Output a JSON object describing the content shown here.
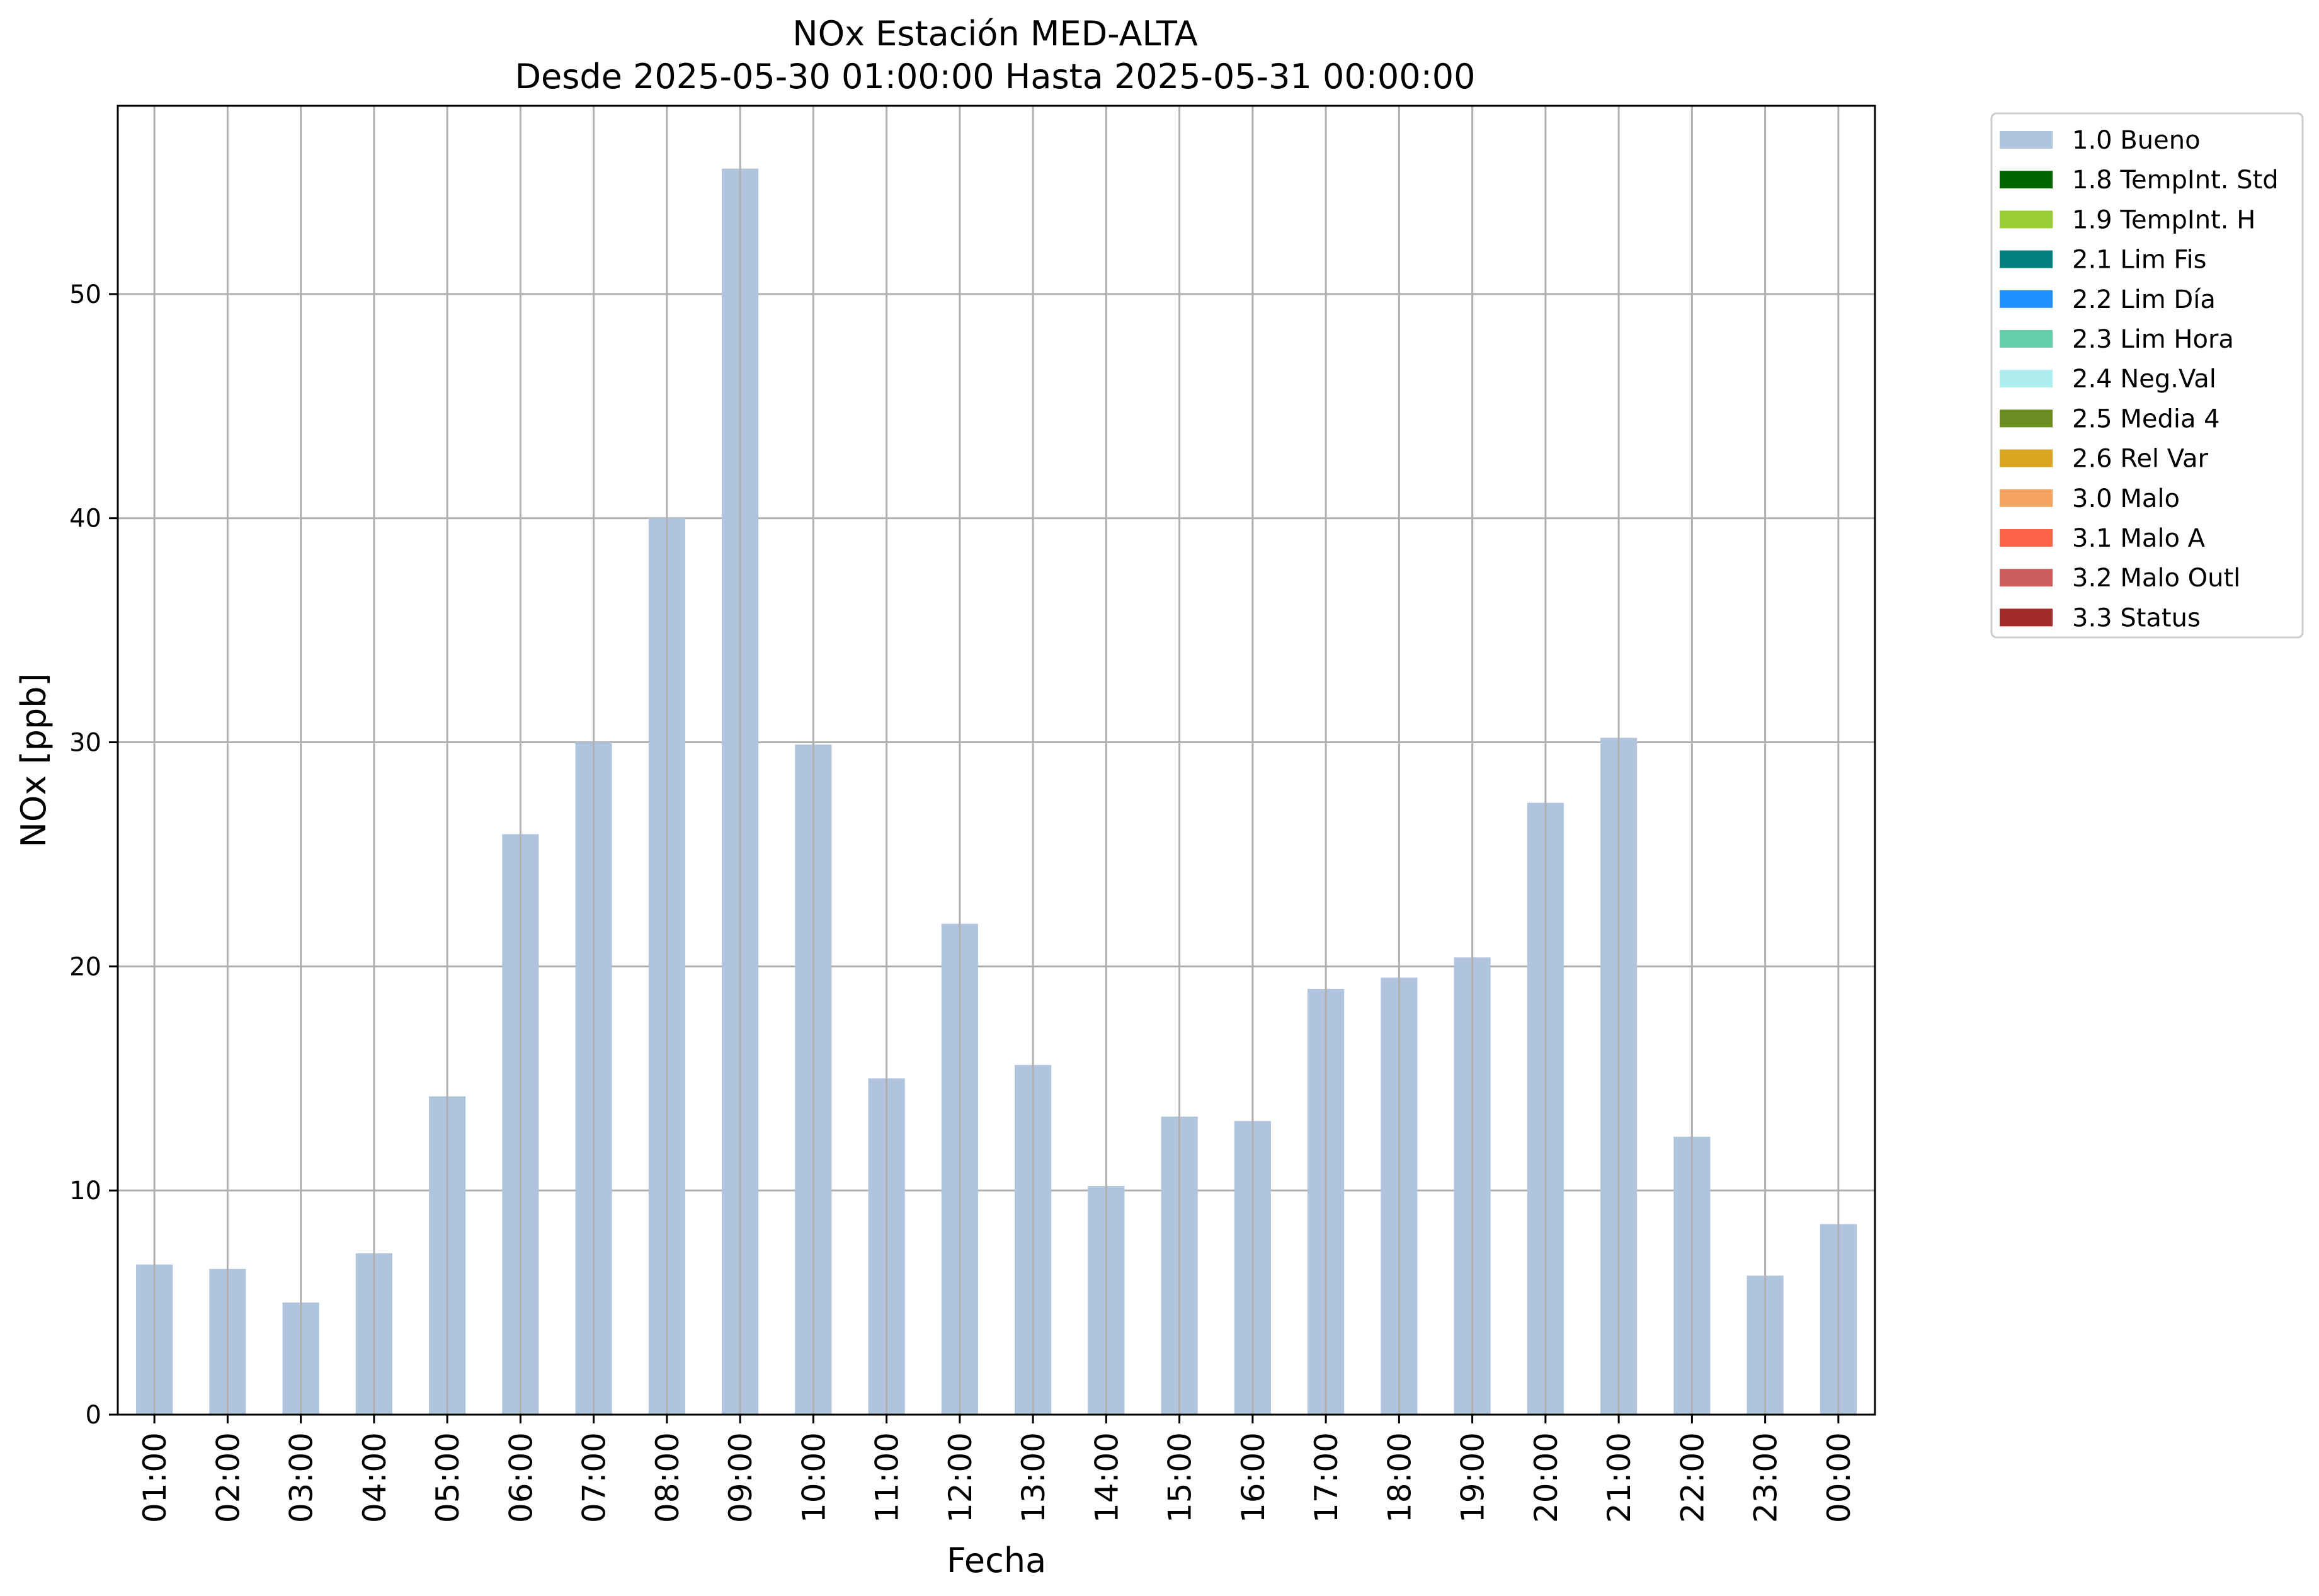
{
  "chart_data": {
    "type": "bar",
    "title": "NOx Estación MED-ALTA",
    "subtitle": "Desde 2025-05-30 01:00:00 Hasta 2025-05-31 00:00:00",
    "xlabel": "Fecha",
    "ylabel": "NOx [ppb]",
    "ylim": [
      0,
      58.4
    ],
    "yticks": [
      0,
      10,
      20,
      30,
      40,
      50
    ],
    "grid": true,
    "legend_position": "outside-top-right",
    "categories": [
      "01:00",
      "02:00",
      "03:00",
      "04:00",
      "05:00",
      "06:00",
      "07:00",
      "08:00",
      "09:00",
      "10:00",
      "11:00",
      "12:00",
      "13:00",
      "14:00",
      "15:00",
      "16:00",
      "17:00",
      "18:00",
      "19:00",
      "20:00",
      "21:00",
      "22:00",
      "23:00",
      "00:00"
    ],
    "series": [
      {
        "name": "1.0 Bueno",
        "color": "#b0c4de",
        "values": [
          6.7,
          6.5,
          5.0,
          7.2,
          14.2,
          25.9,
          30.0,
          40.0,
          55.6,
          29.9,
          15.0,
          21.9,
          15.6,
          10.2,
          13.3,
          13.1,
          19.0,
          19.5,
          20.4,
          27.3,
          30.2,
          12.4,
          6.2,
          8.5
        ]
      }
    ],
    "legend": [
      {
        "label": "1.0 Bueno",
        "color": "#b0c4de"
      },
      {
        "label": "1.8 TempInt. Std",
        "color": "#006400"
      },
      {
        "label": "1.9 TempInt. H",
        "color": "#9acd32"
      },
      {
        "label": "2.1 Lim Fis",
        "color": "#008080"
      },
      {
        "label": "2.2 Lim Día",
        "color": "#1e90ff"
      },
      {
        "label": "2.3 Lim Hora",
        "color": "#66cdaa"
      },
      {
        "label": "2.4 Neg.Val",
        "color": "#afeeee"
      },
      {
        "label": "2.5 Media 4",
        "color": "#6b8e23"
      },
      {
        "label": "2.6 Rel Var",
        "color": "#daa520"
      },
      {
        "label": "3.0 Malo",
        "color": "#f4a460"
      },
      {
        "label": "3.1 Malo A",
        "color": "#ff6347"
      },
      {
        "label": "3.2 Malo Outl",
        "color": "#cd5c5c"
      },
      {
        "label": "3.3 Status",
        "color": "#a52a2a"
      }
    ]
  }
}
